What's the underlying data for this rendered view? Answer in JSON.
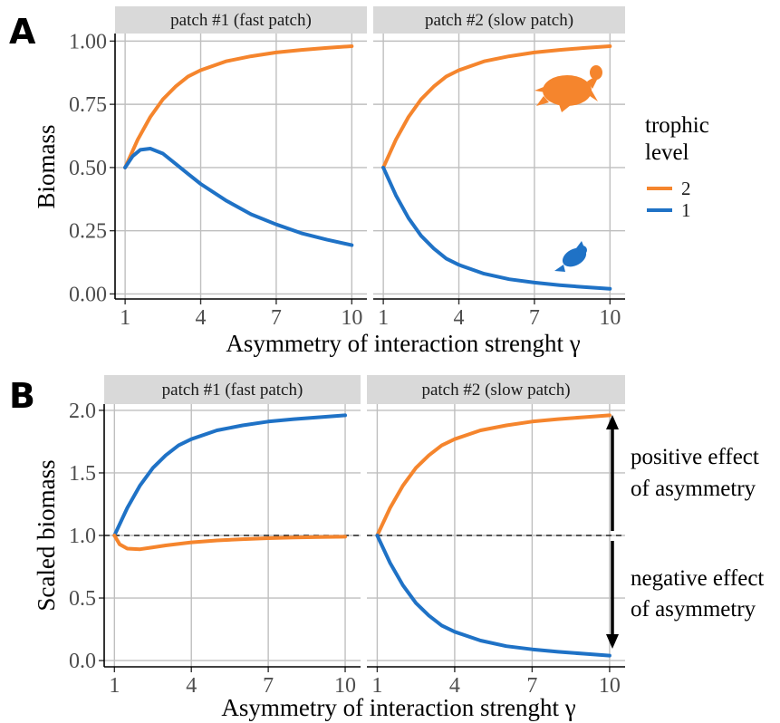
{
  "colors": {
    "level2": "#f5852d",
    "level1": "#1f72c6",
    "strip": "#d9d9d9",
    "grid": "#bfbfbf"
  },
  "legend": {
    "title_line1": "trophic",
    "title_line2": "level",
    "items": [
      {
        "label": "2",
        "color": "#f5852d"
      },
      {
        "label": "1",
        "color": "#1f72c6"
      }
    ]
  },
  "icons": {
    "level2": "turtle-silhouette-icon",
    "level1": "fish-silhouette-icon"
  },
  "annotations": {
    "positive_line1": "positive effect",
    "positive_line2": "of asymmetry",
    "negative_line1": "negative effect",
    "negative_line2": "of asymmetry"
  },
  "chart_data": [
    {
      "panel": "A",
      "type": "line",
      "facets": [
        "patch #1 (fast patch)",
        "patch #2 (slow patch)"
      ],
      "xlabel": "Asymmetry of interaction strenght γ",
      "ylabel": "Biomass",
      "xlim": [
        0.6,
        10.6
      ],
      "ylim": [
        -0.02,
        1.03
      ],
      "xticks": [
        1,
        4,
        7,
        10
      ],
      "xtick_labels": [
        "1",
        "4",
        "7",
        "10"
      ],
      "yticks": [
        0,
        0.25,
        0.5,
        0.75,
        1.0
      ],
      "ytick_labels": [
        "0.00",
        "0.25",
        "0.50",
        "0.75",
        "1.00"
      ],
      "grid": true,
      "legend": "right",
      "series": [
        {
          "name": "2",
          "facet": 0,
          "x": [
            1,
            1.5,
            2,
            2.5,
            3,
            3.5,
            4,
            5,
            6,
            7,
            8,
            9,
            10
          ],
          "y": [
            0.5,
            0.61,
            0.7,
            0.77,
            0.82,
            0.86,
            0.885,
            0.92,
            0.94,
            0.955,
            0.965,
            0.973,
            0.98
          ]
        },
        {
          "name": "1",
          "facet": 0,
          "x": [
            1,
            1.3,
            1.6,
            2,
            2.5,
            3,
            3.5,
            4,
            5,
            6,
            7,
            8,
            9,
            10
          ],
          "y": [
            0.5,
            0.545,
            0.57,
            0.575,
            0.555,
            0.515,
            0.475,
            0.435,
            0.37,
            0.315,
            0.275,
            0.24,
            0.215,
            0.193
          ]
        },
        {
          "name": "2",
          "facet": 1,
          "x": [
            1,
            1.5,
            2,
            2.5,
            3,
            3.5,
            4,
            5,
            6,
            7,
            8,
            9,
            10
          ],
          "y": [
            0.5,
            0.61,
            0.7,
            0.77,
            0.82,
            0.86,
            0.885,
            0.92,
            0.94,
            0.955,
            0.965,
            0.973,
            0.98
          ]
        },
        {
          "name": "1",
          "facet": 1,
          "x": [
            1,
            1.5,
            2,
            2.5,
            3,
            3.5,
            4,
            5,
            6,
            7,
            8,
            9,
            10
          ],
          "y": [
            0.5,
            0.39,
            0.3,
            0.23,
            0.18,
            0.14,
            0.115,
            0.08,
            0.058,
            0.045,
            0.035,
            0.027,
            0.02
          ]
        }
      ]
    },
    {
      "panel": "B",
      "type": "line",
      "facets": [
        "patch #1 (fast patch)",
        "patch #2 (slow patch)"
      ],
      "xlabel": "Asymmetry of interaction strenght γ",
      "ylabel": "Scaled biomass",
      "xlim": [
        0.6,
        10.6
      ],
      "ylim": [
        -0.05,
        2.05
      ],
      "xticks": [
        1,
        4,
        7,
        10
      ],
      "xtick_labels": [
        "1",
        "4",
        "7",
        "10"
      ],
      "yticks": [
        0,
        0.5,
        1.0,
        1.5,
        2.0
      ],
      "ytick_labels": [
        "0.0",
        "0.5",
        "1.0",
        "1.5",
        "2.0"
      ],
      "reference_line": 1.0,
      "grid": true,
      "series": [
        {
          "name": "1",
          "facet": 0,
          "x": [
            1,
            1.5,
            2,
            2.5,
            3,
            3.5,
            4,
            5,
            6,
            7,
            8,
            9,
            10
          ],
          "y": [
            1.0,
            1.22,
            1.4,
            1.54,
            1.64,
            1.72,
            1.77,
            1.84,
            1.88,
            1.91,
            1.93,
            1.945,
            1.96
          ]
        },
        {
          "name": "2",
          "facet": 0,
          "x": [
            1,
            1.2,
            1.5,
            2,
            2.5,
            3,
            4,
            5,
            6,
            7,
            8,
            9,
            10
          ],
          "y": [
            1.0,
            0.93,
            0.895,
            0.89,
            0.905,
            0.92,
            0.945,
            0.96,
            0.97,
            0.978,
            0.984,
            0.988,
            0.99
          ]
        },
        {
          "name": "2",
          "facet": 1,
          "x": [
            1,
            1.5,
            2,
            2.5,
            3,
            3.5,
            4,
            5,
            6,
            7,
            8,
            9,
            10
          ],
          "y": [
            1.0,
            1.22,
            1.4,
            1.54,
            1.64,
            1.72,
            1.77,
            1.84,
            1.88,
            1.91,
            1.93,
            1.945,
            1.96
          ]
        },
        {
          "name": "1",
          "facet": 1,
          "x": [
            1,
            1.5,
            2,
            2.5,
            3,
            3.5,
            4,
            5,
            6,
            7,
            8,
            9,
            10
          ],
          "y": [
            1.0,
            0.78,
            0.6,
            0.46,
            0.36,
            0.28,
            0.23,
            0.16,
            0.115,
            0.09,
            0.07,
            0.055,
            0.04
          ]
        }
      ]
    }
  ]
}
